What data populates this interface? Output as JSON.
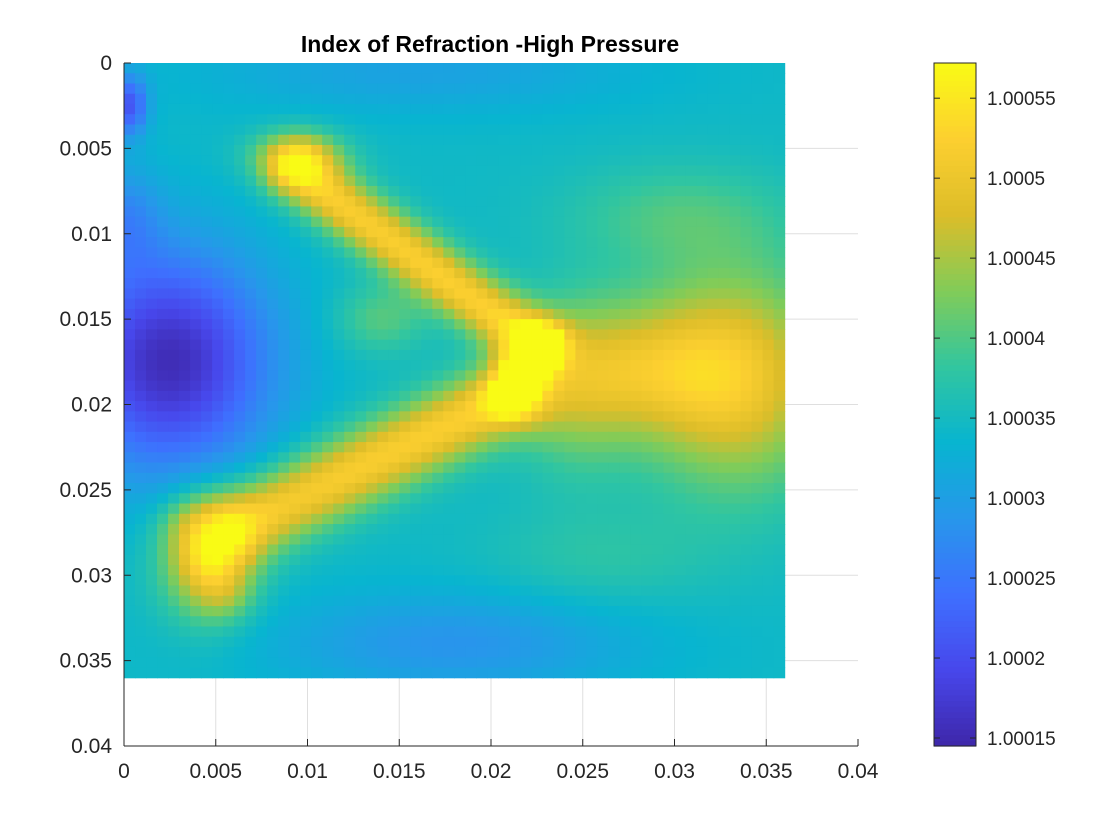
{
  "chart_data": {
    "type": "heatmap",
    "title": "Index of Refraction -High Pressure",
    "xlabel": "",
    "ylabel": "",
    "xlim": [
      0,
      0.04
    ],
    "ylim": [
      0,
      0.04
    ],
    "y_direction": "reversed (0 at top)",
    "x_ticks": [
      "0",
      "0.005",
      "0.01",
      "0.015",
      "0.02",
      "0.025",
      "0.03",
      "0.035",
      "0.04"
    ],
    "y_ticks": [
      "0",
      "0.005",
      "0.01",
      "0.015",
      "0.02",
      "0.025",
      "0.03",
      "0.035",
      "0.04"
    ],
    "grid": true,
    "data_extent": {
      "x": [
        0,
        0.036
      ],
      "y": [
        0,
        0.036
      ]
    },
    "colormap": "parula",
    "colorbar": {
      "placement": "right",
      "clim": [
        1.000145,
        1.000572
      ],
      "ticks": [
        1.00015,
        1.0002,
        1.00025,
        1.0003,
        1.00035,
        1.0004,
        1.00045,
        1.0005,
        1.00055
      ],
      "tick_labels": [
        "1.00015",
        "1.0002",
        "1.00025",
        "1.0003",
        "1.00035",
        "1.0004",
        "1.00045",
        "1.0005",
        "1.00055"
      ]
    },
    "field": {
      "background": 1.000345,
      "features": [
        {
          "kind": "blob",
          "x": 0.0025,
          "y": 0.0175,
          "rx": 0.0055,
          "ry": 0.0065,
          "amp": -0.00019
        },
        {
          "kind": "blob",
          "x": 0.0003,
          "y": 0.0025,
          "rx": 0.001,
          "ry": 0.0018,
          "amp": -0.00013
        },
        {
          "kind": "blob",
          "x": 0.0,
          "y": 0.009,
          "rx": 0.002,
          "ry": 0.003,
          "amp": -6e-05
        },
        {
          "kind": "blob",
          "x": 0.018,
          "y": 0.034,
          "rx": 0.01,
          "ry": 0.003,
          "amp": -6e-05
        },
        {
          "kind": "blob",
          "x": 0.016,
          "y": 0.0005,
          "rx": 0.012,
          "ry": 0.0025,
          "amp": -4e-05
        },
        {
          "kind": "blob",
          "x": 0.0045,
          "y": 0.029,
          "rx": 0.0025,
          "ry": 0.0035,
          "amp": 0.00015
        },
        {
          "kind": "blob",
          "x": 0.0095,
          "y": 0.0055,
          "rx": 0.0025,
          "ry": 0.0015,
          "amp": 0.00012
        },
        {
          "kind": "blob",
          "x": 0.0335,
          "y": 0.0185,
          "rx": 0.005,
          "ry": 0.0065,
          "amp": 0.00015
        },
        {
          "kind": "blob",
          "x": 0.028,
          "y": 0.018,
          "rx": 0.005,
          "ry": 0.004,
          "amp": 0.00011
        },
        {
          "kind": "blob",
          "x": 0.0245,
          "y": 0.019,
          "rx": 0.003,
          "ry": 0.005,
          "amp": 7e-05
        },
        {
          "kind": "blob",
          "x": 0.03,
          "y": 0.009,
          "rx": 0.006,
          "ry": 0.003,
          "amp": 5e-05
        },
        {
          "kind": "blob",
          "x": 0.026,
          "y": 0.029,
          "rx": 0.006,
          "ry": 0.003,
          "amp": 3e-05
        },
        {
          "kind": "blob",
          "x": 0.014,
          "y": 0.015,
          "rx": 0.0025,
          "ry": 0.002,
          "amp": 6e-05
        },
        {
          "kind": "band",
          "x1": 0.0095,
          "y1": 0.0065,
          "x2": 0.0225,
          "y2": 0.0165,
          "w": 0.0017,
          "amp": 0.000175
        },
        {
          "kind": "band",
          "x1": 0.0065,
          "y1": 0.027,
          "x2": 0.021,
          "y2": 0.0195,
          "w": 0.0022,
          "amp": 0.000175
        },
        {
          "kind": "band",
          "x1": 0.021,
          "y1": 0.0195,
          "x2": 0.0225,
          "y2": 0.0165,
          "w": 0.0012,
          "amp": 0.00015
        },
        {
          "kind": "band",
          "x1": 0.0035,
          "y1": 0.027,
          "x2": 0.0055,
          "y2": 0.031,
          "w": 0.0016,
          "amp": 5e-05
        }
      ]
    }
  }
}
